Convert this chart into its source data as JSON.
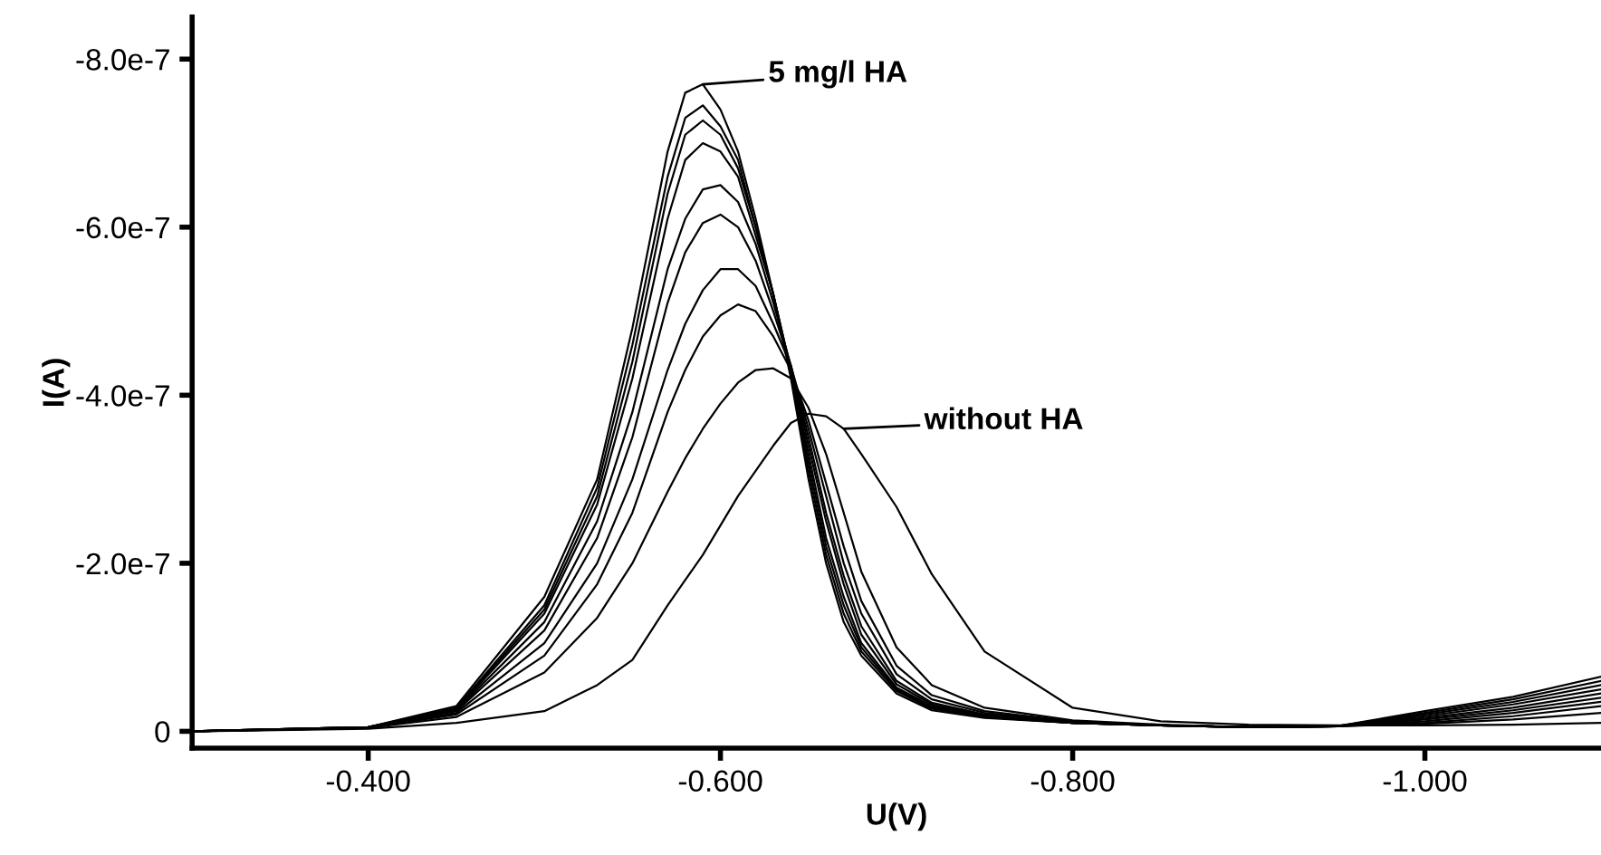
{
  "chart_data": {
    "type": "line",
    "xlabel": "U(V)",
    "ylabel": "I(A)",
    "x": [
      -0.3,
      -0.4,
      -0.45,
      -0.5,
      -0.53,
      -0.55,
      -0.57,
      -0.58,
      -0.59,
      -0.6,
      -0.61,
      -0.62,
      -0.63,
      -0.64,
      -0.65,
      -0.66,
      -0.67,
      -0.68,
      -0.7,
      -0.72,
      -0.75,
      -0.8,
      -0.85,
      -0.9,
      -0.95,
      -1.0,
      -1.05,
      -1.1
    ],
    "series": [
      {
        "color": "#000000",
        "values": [
          0,
          -5e-09,
          -3e-08,
          -1.6e-07,
          -3e-07,
          -4.8e-07,
          -6.9e-07,
          -7.6e-07,
          -7.7e-07,
          -7.4e-07,
          -6.9e-07,
          -6.1e-07,
          -5.2e-07,
          -4.2e-07,
          -3e-07,
          -2e-07,
          -1.3e-07,
          -9e-08,
          -4.5e-08,
          -2.5e-08,
          -1.6e-08,
          -1e-08,
          -7e-09,
          -5e-09,
          -6e-09,
          -2.4e-08,
          -4.1e-08,
          -6.5e-08
        ]
      },
      {
        "color": "#000000",
        "values": [
          0,
          -5e-09,
          -2.8e-08,
          -1.5e-07,
          -2.9e-07,
          -4.6e-07,
          -6.6e-07,
          -7.3e-07,
          -7.45e-07,
          -7.2e-07,
          -6.8e-07,
          -6e-07,
          -5.2e-07,
          -4.25e-07,
          -3.1e-07,
          -2.1e-07,
          -1.4e-07,
          -9.5e-08,
          -4.8e-08,
          -2.7e-08,
          -1.7e-08,
          -1e-08,
          -7e-09,
          -5e-09,
          -6e-09,
          -2.2e-08,
          -3.8e-08,
          -6e-08
        ]
      },
      {
        "color": "#000000",
        "values": [
          0,
          -5e-09,
          -2.7e-08,
          -1.45e-07,
          -2.8e-07,
          -4.4e-07,
          -6.4e-07,
          -7.1e-07,
          -7.27e-07,
          -7.1e-07,
          -6.7e-07,
          -6e-07,
          -5.2e-07,
          -4.3e-07,
          -3.2e-07,
          -2.2e-07,
          -1.5e-07,
          -1e-07,
          -5e-08,
          -2.8e-08,
          -1.7e-08,
          -1e-08,
          -7e-09,
          -5e-09,
          -6e-09,
          -2e-08,
          -3.5e-08,
          -5.5e-08
        ]
      },
      {
        "color": "#000000",
        "values": [
          0,
          -5e-09,
          -2.6e-08,
          -1.4e-07,
          -2.7e-07,
          -4.2e-07,
          -6.1e-07,
          -6.8e-07,
          -7e-07,
          -6.9e-07,
          -6.6e-07,
          -5.9e-07,
          -5.2e-07,
          -4.3e-07,
          -3.3e-07,
          -2.3e-07,
          -1.6e-07,
          -1.05e-07,
          -5.2e-08,
          -3e-08,
          -1.8e-08,
          -1e-08,
          -7e-09,
          -5e-09,
          -6e-09,
          -1.8e-08,
          -3.2e-08,
          -5e-08
        ]
      },
      {
        "color": "#000000",
        "values": [
          0,
          -5e-09,
          -2.5e-08,
          -1.3e-07,
          -2.5e-07,
          -3.8e-07,
          -5.5e-07,
          -6.1e-07,
          -6.45e-07,
          -6.5e-07,
          -6.3e-07,
          -5.8e-07,
          -5.1e-07,
          -4.35e-07,
          -3.4e-07,
          -2.5e-07,
          -1.75e-07,
          -1.15e-07,
          -5.6e-08,
          -3.2e-08,
          -1.9e-08,
          -1e-08,
          -7e-09,
          -5e-09,
          -6e-09,
          -1.6e-08,
          -2.8e-08,
          -4.5e-08
        ]
      },
      {
        "color": "#000000",
        "values": [
          0,
          -5e-09,
          -2.4e-08,
          -1.2e-07,
          -2.3e-07,
          -3.5e-07,
          -5.1e-07,
          -5.7e-07,
          -6.05e-07,
          -6.15e-07,
          -6e-07,
          -5.6e-07,
          -5e-07,
          -4.35e-07,
          -3.5e-07,
          -2.6e-07,
          -1.85e-07,
          -1.25e-07,
          -6e-08,
          -3.4e-08,
          -2e-08,
          -1e-08,
          -7e-09,
          -5e-09,
          -6e-09,
          -1.4e-08,
          -2.5e-08,
          -4e-08
        ]
      },
      {
        "color": "#000000",
        "values": [
          0,
          -4e-09,
          -2.2e-08,
          -1.05e-07,
          -2e-07,
          -3e-07,
          -4.3e-07,
          -4.85e-07,
          -5.25e-07,
          -5.5e-07,
          -5.5e-07,
          -5.3e-07,
          -4.85e-07,
          -4.35e-07,
          -3.6e-07,
          -2.8e-07,
          -2e-07,
          -1.4e-07,
          -6.8e-08,
          -3.8e-08,
          -2.2e-08,
          -1.1e-08,
          -7e-09,
          -5e-09,
          -6e-09,
          -1.2e-08,
          -2.2e-08,
          -3.5e-08
        ]
      },
      {
        "color": "#000000",
        "values": [
          0,
          -4e-09,
          -2e-08,
          -9e-08,
          -1.75e-07,
          -2.6e-07,
          -3.8e-07,
          -4.3e-07,
          -4.7e-07,
          -4.95e-07,
          -5.08e-07,
          -5e-07,
          -4.7e-07,
          -4.3e-07,
          -3.7e-07,
          -2.95e-07,
          -2.2e-07,
          -1.55e-07,
          -7.8e-08,
          -4.3e-08,
          -2.4e-08,
          -1.2e-08,
          -7e-09,
          -5e-09,
          -6e-09,
          -1e-08,
          -1.8e-08,
          -3e-08
        ]
      },
      {
        "color": "#000000",
        "values": [
          0,
          -4e-09,
          -1.7e-08,
          -7e-08,
          -1.35e-07,
          -2e-07,
          -2.85e-07,
          -3.25e-07,
          -3.6e-07,
          -3.9e-07,
          -4.15e-07,
          -4.3e-07,
          -4.32e-07,
          -4.2e-07,
          -3.85e-07,
          -3.3e-07,
          -2.6e-07,
          -1.9e-07,
          -1e-07,
          -5.5e-08,
          -2.8e-08,
          -1.3e-08,
          -8e-09,
          -5e-09,
          -6e-09,
          -9e-09,
          -1.4e-08,
          -2.2e-08
        ]
      },
      {
        "color": "#000000",
        "values": [
          0,
          -3e-09,
          -1e-08,
          -2.4e-08,
          -5.5e-08,
          -8.5e-08,
          -1.5e-07,
          -1.8e-07,
          -2.1e-07,
          -2.45e-07,
          -2.8e-07,
          -3.1e-07,
          -3.4e-07,
          -3.67e-07,
          -3.78e-07,
          -3.75e-07,
          -3.6e-07,
          -3.3e-07,
          -2.67e-07,
          -1.87e-07,
          -9.5e-08,
          -2.8e-08,
          -1.2e-08,
          -8e-09,
          -7e-09,
          -7e-09,
          -8e-09,
          -1e-08
        ]
      }
    ],
    "annotations": [
      {
        "text": "5 mg/l HA",
        "x": -0.59,
        "y": -7.7e-07
      },
      {
        "text": "without HA",
        "x": -0.67,
        "y": -3.6e-07
      }
    ],
    "xlim": [
      -0.3,
      -1.1
    ],
    "ylim": [
      2e-08,
      -8.5e-07
    ],
    "xticks": [
      {
        "value": -0.4,
        "label": "-0.400"
      },
      {
        "value": -0.6,
        "label": "-0.600"
      },
      {
        "value": -0.8,
        "label": "-0.800"
      },
      {
        "value": -1.0,
        "label": "-1.000"
      }
    ],
    "yticks": [
      0,
      {
        "value": -2e-07,
        "label": "-2.0e-7"
      },
      {
        "value": -4e-07,
        "label": "-4.0e-7"
      },
      {
        "value": -6e-07,
        "label": "-6.0e-7"
      },
      {
        "value": -8e-07,
        "label": "-8.0e-7"
      }
    ],
    "grid": false,
    "marker": "none",
    "line_style": "solid"
  }
}
